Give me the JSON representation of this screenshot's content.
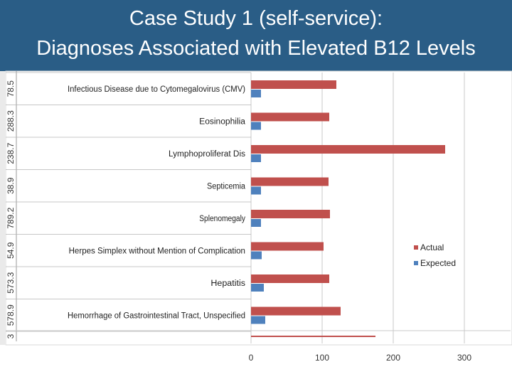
{
  "slide": {
    "title_line1": "Case Study 1 (self-service):",
    "title_line2": "Diagnoses Associated with Elevated B12 Levels"
  },
  "chart_data": {
    "type": "bar",
    "orientation": "horizontal",
    "categories": [
      "Infectious Disease due to Cytomegalovirus (CMV)",
      "Eosinophilia",
      "Lymphoproliferat Dis",
      "Septicemia",
      "Splenomegaly",
      "Herpes Simplex without Mention of Complication",
      "Hepatitis",
      "Hemorrhage of Gastrointestinal Tract, Unspecified"
    ],
    "series": [
      {
        "name": "Actual",
        "color": "#c0504d",
        "values": [
          120,
          110,
          273,
          109,
          111,
          102,
          110,
          126
        ]
      },
      {
        "name": "Expected",
        "color": "#4f81bd",
        "values": [
          14,
          14,
          14,
          14,
          14,
          15,
          18,
          20
        ]
      }
    ],
    "partial_bottom_bar": {
      "color": "#c0504d",
      "value": 175
    },
    "side_values": [
      "78.5",
      "288.3",
      "238.7",
      "38.9",
      "789.2",
      "54.9",
      "573.3",
      "578.9",
      "3"
    ],
    "xlim": [
      0,
      360
    ],
    "xticks": [
      0,
      100,
      200,
      300
    ],
    "grid": true,
    "legend": "right"
  }
}
